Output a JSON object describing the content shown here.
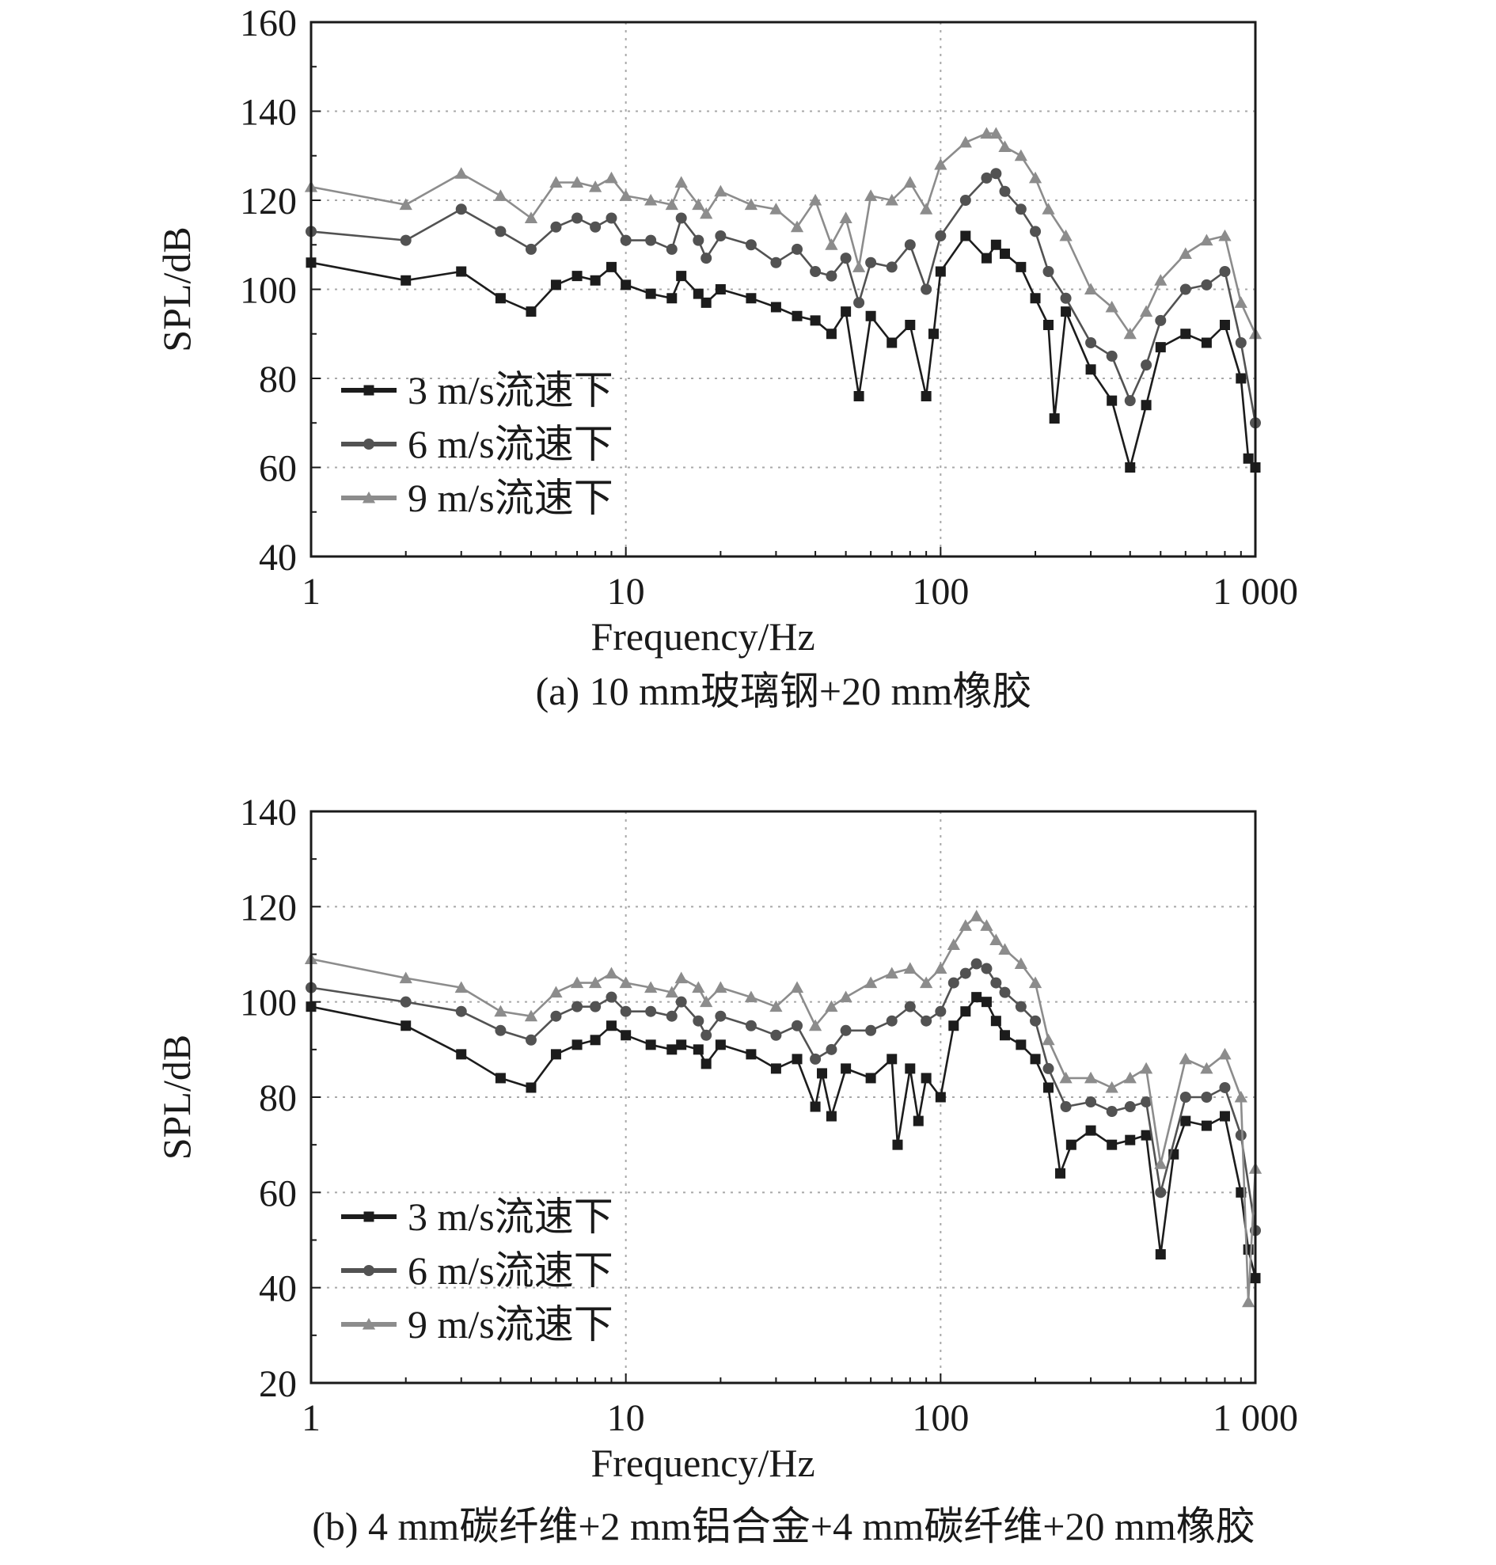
{
  "figure": {
    "panel_a_caption": "(a) 10 mm玻璃钢+20 mm橡胶",
    "panel_b_caption": "(b) 4 mm碳纤维+2 mm铝合金+4 mm碳纤维+20 mm橡胶"
  },
  "colors": {
    "s3": "#1c1c1c",
    "s6": "#525252",
    "s9": "#8c8c8c",
    "grid": "#a8a8a8",
    "axis": "#1a1a1a"
  },
  "chart_data": [
    {
      "type": "line",
      "title": "",
      "caption": "(a) 10 mm玻璃钢+20 mm橡胶",
      "xlabel": "Frequency/Hz",
      "ylabel": "SPL/dB",
      "xscale": "log",
      "xlim": [
        1,
        1000
      ],
      "ylim": [
        40,
        160
      ],
      "xticks": [
        1,
        10,
        100,
        1000
      ],
      "xtick_labels": [
        "1",
        "10",
        "100",
        "1 000"
      ],
      "yticks": [
        40,
        60,
        80,
        100,
        120,
        140,
        160
      ],
      "ytick_labels": [
        "40",
        "60",
        "80",
        "100",
        "120",
        "140",
        "160"
      ],
      "grid": true,
      "legend_position": "bottom-left",
      "series": [
        {
          "name": "3 m/s流速下",
          "marker": "square",
          "x": [
            1,
            2,
            3,
            4,
            5,
            6,
            7,
            8,
            9,
            10,
            12,
            14,
            15,
            17,
            18,
            20,
            25,
            30,
            35,
            40,
            45,
            50,
            55,
            60,
            70,
            80,
            90,
            95,
            100,
            120,
            140,
            150,
            160,
            180,
            200,
            220,
            230,
            250,
            300,
            350,
            400,
            450,
            500,
            600,
            700,
            800,
            900,
            950,
            1000
          ],
          "y": [
            106,
            102,
            104,
            98,
            95,
            101,
            103,
            102,
            105,
            101,
            99,
            98,
            103,
            99,
            97,
            100,
            98,
            96,
            94,
            93,
            90,
            95,
            76,
            94,
            88,
            92,
            76,
            90,
            104,
            112,
            107,
            110,
            108,
            105,
            98,
            92,
            71,
            95,
            82,
            75,
            60,
            74,
            87,
            90,
            88,
            92,
            80,
            62,
            60
          ]
        },
        {
          "name": "6 m/s流速下",
          "marker": "circle",
          "x": [
            1,
            2,
            3,
            4,
            5,
            6,
            7,
            8,
            9,
            10,
            12,
            14,
            15,
            17,
            18,
            20,
            25,
            30,
            35,
            40,
            45,
            50,
            55,
            60,
            70,
            80,
            90,
            100,
            120,
            140,
            150,
            160,
            180,
            200,
            220,
            250,
            300,
            350,
            400,
            450,
            500,
            600,
            700,
            800,
            900,
            1000
          ],
          "y": [
            113,
            111,
            118,
            113,
            109,
            114,
            116,
            114,
            116,
            111,
            111,
            109,
            116,
            111,
            107,
            112,
            110,
            106,
            109,
            104,
            103,
            107,
            97,
            106,
            105,
            110,
            100,
            112,
            120,
            125,
            126,
            122,
            118,
            113,
            104,
            98,
            88,
            85,
            75,
            83,
            93,
            100,
            101,
            104,
            88,
            70
          ]
        },
        {
          "name": "9 m/s流速下",
          "marker": "triangle",
          "x": [
            1,
            2,
            3,
            4,
            5,
            6,
            7,
            8,
            9,
            10,
            12,
            14,
            15,
            17,
            18,
            20,
            25,
            30,
            35,
            40,
            45,
            50,
            55,
            60,
            70,
            80,
            90,
            100,
            120,
            140,
            150,
            160,
            180,
            200,
            220,
            250,
            300,
            350,
            400,
            450,
            500,
            600,
            700,
            800,
            900,
            1000
          ],
          "y": [
            123,
            119,
            126,
            121,
            116,
            124,
            124,
            123,
            125,
            121,
            120,
            119,
            124,
            119,
            117,
            122,
            119,
            118,
            114,
            120,
            110,
            116,
            105,
            121,
            120,
            124,
            118,
            128,
            133,
            135,
            135,
            132,
            130,
            125,
            118,
            112,
            100,
            96,
            90,
            95,
            102,
            108,
            111,
            112,
            97,
            90
          ]
        }
      ]
    },
    {
      "type": "line",
      "title": "",
      "caption": "(b) 4 mm碳纤维+2 mm铝合金+4 mm碳纤维+20 mm橡胶",
      "xlabel": "Frequency/Hz",
      "ylabel": "SPL/dB",
      "xscale": "log",
      "xlim": [
        1,
        1000
      ],
      "ylim": [
        20,
        140
      ],
      "xticks": [
        1,
        10,
        100,
        1000
      ],
      "xtick_labels": [
        "1",
        "10",
        "100",
        "1 000"
      ],
      "yticks": [
        20,
        40,
        60,
        80,
        100,
        120,
        140
      ],
      "ytick_labels": [
        "20",
        "40",
        "60",
        "80",
        "100",
        "120",
        "140"
      ],
      "grid": true,
      "legend_position": "bottom-left",
      "series": [
        {
          "name": "3 m/s流速下",
          "marker": "square",
          "x": [
            1,
            2,
            3,
            4,
            5,
            6,
            7,
            8,
            9,
            10,
            12,
            14,
            15,
            17,
            18,
            20,
            25,
            30,
            35,
            40,
            42,
            45,
            50,
            60,
            70,
            73,
            80,
            85,
            90,
            100,
            110,
            120,
            130,
            140,
            150,
            160,
            180,
            200,
            220,
            240,
            260,
            300,
            350,
            400,
            450,
            500,
            550,
            600,
            700,
            800,
            900,
            950,
            1000
          ],
          "y": [
            99,
            95,
            89,
            84,
            82,
            89,
            91,
            92,
            95,
            93,
            91,
            90,
            91,
            90,
            87,
            91,
            89,
            86,
            88,
            78,
            85,
            76,
            86,
            84,
            88,
            70,
            86,
            75,
            84,
            80,
            95,
            98,
            101,
            100,
            96,
            93,
            91,
            88,
            82,
            64,
            70,
            73,
            70,
            71,
            72,
            47,
            68,
            75,
            74,
            76,
            60,
            48,
            42
          ]
        },
        {
          "name": "6 m/s流速下",
          "marker": "circle",
          "x": [
            1,
            2,
            3,
            4,
            5,
            6,
            7,
            8,
            9,
            10,
            12,
            14,
            15,
            17,
            18,
            20,
            25,
            30,
            35,
            40,
            45,
            50,
            60,
            70,
            80,
            90,
            100,
            110,
            120,
            130,
            140,
            150,
            160,
            180,
            200,
            220,
            250,
            300,
            350,
            400,
            450,
            500,
            600,
            700,
            800,
            900,
            1000
          ],
          "y": [
            103,
            100,
            98,
            94,
            92,
            97,
            99,
            99,
            101,
            98,
            98,
            97,
            100,
            96,
            93,
            97,
            95,
            93,
            95,
            88,
            90,
            94,
            94,
            96,
            99,
            96,
            98,
            104,
            106,
            108,
            107,
            104,
            102,
            99,
            96,
            86,
            78,
            79,
            77,
            78,
            79,
            60,
            80,
            80,
            82,
            72,
            52
          ]
        },
        {
          "name": "9 m/s流速下",
          "marker": "triangle",
          "x": [
            1,
            2,
            3,
            4,
            5,
            6,
            7,
            8,
            9,
            10,
            12,
            14,
            15,
            17,
            18,
            20,
            25,
            30,
            35,
            40,
            45,
            50,
            60,
            70,
            80,
            90,
            100,
            110,
            120,
            130,
            140,
            150,
            160,
            180,
            200,
            220,
            250,
            300,
            350,
            400,
            450,
            500,
            600,
            700,
            800,
            900,
            950,
            1000
          ],
          "y": [
            109,
            105,
            103,
            98,
            97,
            102,
            104,
            104,
            106,
            104,
            103,
            102,
            105,
            103,
            100,
            103,
            101,
            99,
            103,
            95,
            99,
            101,
            104,
            106,
            107,
            104,
            107,
            112,
            116,
            118,
            116,
            113,
            111,
            108,
            104,
            92,
            84,
            84,
            82,
            84,
            86,
            66,
            88,
            86,
            89,
            80,
            37,
            65
          ]
        }
      ]
    }
  ]
}
